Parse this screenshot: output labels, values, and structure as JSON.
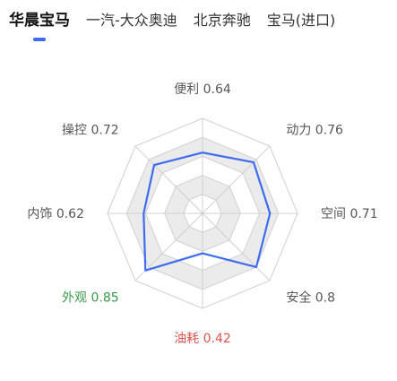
{
  "tabs": [
    {
      "label": "华晨宝马",
      "active": true
    },
    {
      "label": "一汽-大众奥迪",
      "active": false
    },
    {
      "label": "北京奔驰",
      "active": false
    },
    {
      "label": "宝马(进口)",
      "active": false
    }
  ],
  "colors": {
    "accent": "#3d6cf0",
    "good": "#3a9a4a",
    "bad": "#d9534f",
    "label": "#555555",
    "grid": "#d0d0d0",
    "band": "#ebebeb"
  },
  "chart_data": {
    "type": "radar",
    "axes": [
      {
        "name": "便利",
        "value": 0.64,
        "label": "便利 0.64",
        "status": "normal"
      },
      {
        "name": "动力",
        "value": 0.76,
        "label": "动力 0.76",
        "status": "normal"
      },
      {
        "name": "空间",
        "value": 0.71,
        "label": "空间 0.71",
        "status": "normal"
      },
      {
        "name": "安全",
        "value": 0.8,
        "label": "安全 0.8",
        "status": "normal"
      },
      {
        "name": "油耗",
        "value": 0.42,
        "label": "油耗 0.42",
        "status": "bad"
      },
      {
        "name": "外观",
        "value": 0.85,
        "label": "外观 0.85",
        "status": "good"
      },
      {
        "name": "内饰",
        "value": 0.62,
        "label": "内饰 0.62",
        "status": "normal"
      },
      {
        "name": "操控",
        "value": 0.72,
        "label": "操控 0.72",
        "status": "normal"
      }
    ],
    "range": [
      0,
      1
    ],
    "rings": 5
  }
}
